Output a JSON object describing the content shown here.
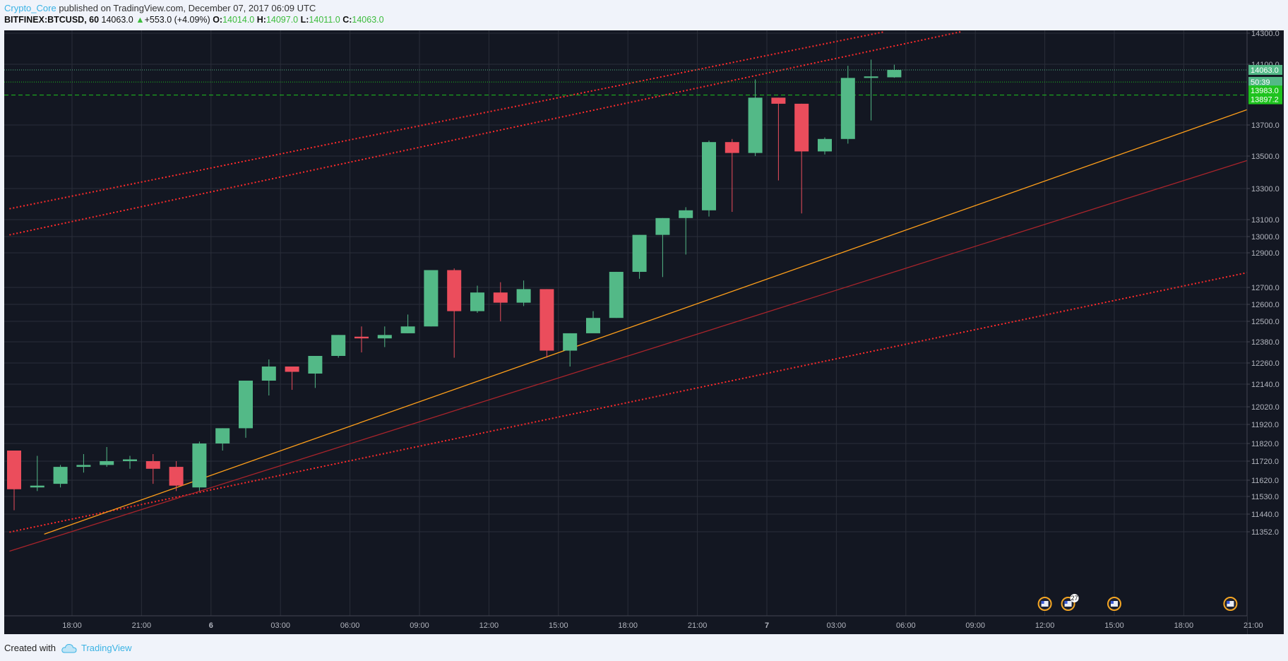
{
  "header": {
    "author": "Crypto_Core",
    "published_text": " published on TradingView.com, December 07, 2017 06:09 UTC",
    "symbol": "BITFINEX:BTCUSD, 60",
    "last": "14063.0",
    "change": "+553.0 (+4.09%)",
    "open_label": "O:",
    "open": "14014.0",
    "high_label": "H:",
    "high": "14097.0",
    "low_label": "L:",
    "low": "14011.0",
    "close_label": "C:",
    "close": "14063.0"
  },
  "footer": {
    "created_with": "Created with",
    "brand": "TradingView"
  },
  "colors": {
    "up": "#53b987",
    "down": "#eb4d5c",
    "background": "#131722",
    "grid": "#2a2e39",
    "axis_text": "#b2b5be",
    "trend_red": "#ff2b2b",
    "trend_orange": "#ff9f1a",
    "badge_green": "#1ec31e",
    "price_badge": "#53b987"
  },
  "chart_data": {
    "type": "candlestick",
    "ylim": [
      11340,
      14310
    ],
    "x_ticks": [
      "18:00",
      "21:00",
      "6",
      "03:00",
      "06:00",
      "09:00",
      "12:00",
      "15:00",
      "18:00",
      "21:00",
      "7",
      "03:00",
      "06:00",
      "09:00",
      "12:00",
      "15:00",
      "18:00",
      "21:00"
    ],
    "y_ticks": [
      "14300.0",
      "14100.0",
      "13700.0",
      "13500.0",
      "13300.0",
      "13100.0",
      "13000.0",
      "12900.0",
      "12700.0",
      "12600.0",
      "12500.0",
      "12380.0",
      "12260.0",
      "12140.0",
      "12020.0",
      "11920.0",
      "11820.0",
      "11720.0",
      "11620.0",
      "11530.0",
      "11440.0",
      "11352.0"
    ],
    "y_tick_values": [
      14300,
      14100,
      13700,
      13500,
      13300,
      13100,
      13000,
      12900,
      12700,
      12600,
      12500,
      12380,
      12260,
      12140,
      12020,
      11920,
      11820,
      11720,
      11620,
      11530,
      11440,
      11352
    ],
    "price_badges": [
      {
        "label": "14063.0",
        "value": 14063,
        "color": "#53b987"
      },
      {
        "label": "50:39",
        "value": 14020,
        "color": "#53b987"
      },
      {
        "label": "13983.0",
        "value": 13983,
        "color": "#1ec31e"
      },
      {
        "label": "13897.2",
        "value": 13897.2,
        "color": "#1ec31e"
      }
    ],
    "horizontal_lines": [
      {
        "value": 14063,
        "color": "#53b987",
        "style": "dotted"
      },
      {
        "value": 13983,
        "color": "#1ec31e",
        "style": "dotted"
      },
      {
        "value": 13897.2,
        "color": "#1ec31e",
        "style": "dashed"
      }
    ],
    "candles": [
      {
        "o": 11780,
        "h": 11780,
        "c": 11570,
        "l": 11460
      },
      {
        "o": 11580,
        "h": 11750,
        "c": 11590,
        "l": 11560
      },
      {
        "o": 11600,
        "h": 11700,
        "c": 11690,
        "l": 11580
      },
      {
        "o": 11690,
        "h": 11760,
        "c": 11700,
        "l": 11660
      },
      {
        "o": 11700,
        "h": 11800,
        "c": 11720,
        "l": 11690
      },
      {
        "o": 11720,
        "h": 11750,
        "c": 11730,
        "l": 11680
      },
      {
        "o": 11720,
        "h": 11760,
        "c": 11680,
        "l": 11600
      },
      {
        "o": 11690,
        "h": 11720,
        "c": 11590,
        "l": 11560
      },
      {
        "o": 11580,
        "h": 11830,
        "c": 11820,
        "l": 11560
      },
      {
        "o": 11820,
        "h": 11900,
        "c": 11900,
        "l": 11780
      },
      {
        "o": 11900,
        "h": 12160,
        "c": 12160,
        "l": 11850
      },
      {
        "o": 12160,
        "h": 12280,
        "c": 12240,
        "l": 12080
      },
      {
        "o": 12240,
        "h": 12240,
        "c": 12210,
        "l": 12110
      },
      {
        "o": 12200,
        "h": 12300,
        "c": 12300,
        "l": 12120
      },
      {
        "o": 12300,
        "h": 12420,
        "c": 12420,
        "l": 12290
      },
      {
        "o": 12410,
        "h": 12470,
        "c": 12400,
        "l": 12320
      },
      {
        "o": 12400,
        "h": 12470,
        "c": 12420,
        "l": 12350
      },
      {
        "o": 12430,
        "h": 12540,
        "c": 12470,
        "l": 12430
      },
      {
        "o": 12470,
        "h": 12800,
        "c": 12800,
        "l": 12470
      },
      {
        "o": 12800,
        "h": 12810,
        "c": 12560,
        "l": 12290
      },
      {
        "o": 12560,
        "h": 12710,
        "c": 12670,
        "l": 12550
      },
      {
        "o": 12670,
        "h": 12730,
        "c": 12610,
        "l": 12500
      },
      {
        "o": 12610,
        "h": 12740,
        "c": 12690,
        "l": 12590
      },
      {
        "o": 12690,
        "h": 12690,
        "c": 12330,
        "l": 12290
      },
      {
        "o": 12330,
        "h": 12430,
        "c": 12430,
        "l": 12240
      },
      {
        "o": 12430,
        "h": 12560,
        "c": 12520,
        "l": 12440
      },
      {
        "o": 12520,
        "h": 12790,
        "c": 12790,
        "l": 12520
      },
      {
        "o": 12790,
        "h": 13010,
        "c": 13010,
        "l": 12750
      },
      {
        "o": 13010,
        "h": 13110,
        "c": 13110,
        "l": 12760
      },
      {
        "o": 13110,
        "h": 13180,
        "c": 13160,
        "l": 12890
      },
      {
        "o": 13160,
        "h": 13600,
        "c": 13590,
        "l": 13120
      },
      {
        "o": 13590,
        "h": 13610,
        "c": 13520,
        "l": 13150
      },
      {
        "o": 13520,
        "h": 14000,
        "c": 13880,
        "l": 13500
      },
      {
        "o": 13880,
        "h": 13880,
        "c": 13840,
        "l": 13350
      },
      {
        "o": 13840,
        "h": 13840,
        "c": 13530,
        "l": 13140
      },
      {
        "o": 13530,
        "h": 13620,
        "c": 13610,
        "l": 13510
      },
      {
        "o": 13610,
        "h": 14090,
        "c": 14010,
        "l": 13580
      },
      {
        "o": 14010,
        "h": 14130,
        "c": 14020,
        "l": 13730
      },
      {
        "o": 14014,
        "h": 14097,
        "c": 14063,
        "l": 14011
      }
    ],
    "trend_lines": [
      {
        "from": {
          "bar": -0.2,
          "value": 13170
        },
        "to": {
          "bar": 37.6,
          "value": 14310
        },
        "color": "#ff2b2b",
        "style": "dotted"
      },
      {
        "from": {
          "bar": -0.2,
          "value": 13010
        },
        "to": {
          "bar": 40.9,
          "value": 14310
        },
        "color": "#ff2b2b",
        "style": "dotted"
      },
      {
        "from": {
          "bar": -0.2,
          "value": 11350
        },
        "to": {
          "bar": 53.4,
          "value": 12790
        },
        "color": "#ff2b2b",
        "style": "dotted"
      },
      {
        "from": {
          "bar": -0.2,
          "value": 11255
        },
        "to": {
          "bar": 53.4,
          "value": 13480
        },
        "color": "#a8242b",
        "style": "solid"
      },
      {
        "from": {
          "bar": 1.3,
          "value": 11340
        },
        "to": {
          "bar": 53.4,
          "value": 13810
        },
        "color": "#ff9f1a",
        "style": "solid"
      }
    ],
    "event_markers": [
      {
        "label": "",
        "position": "12:00"
      },
      {
        "label": "27",
        "position": "12:00+1"
      },
      {
        "label": "",
        "position": "15:00"
      },
      {
        "label": "",
        "position": "20:00"
      }
    ]
  }
}
